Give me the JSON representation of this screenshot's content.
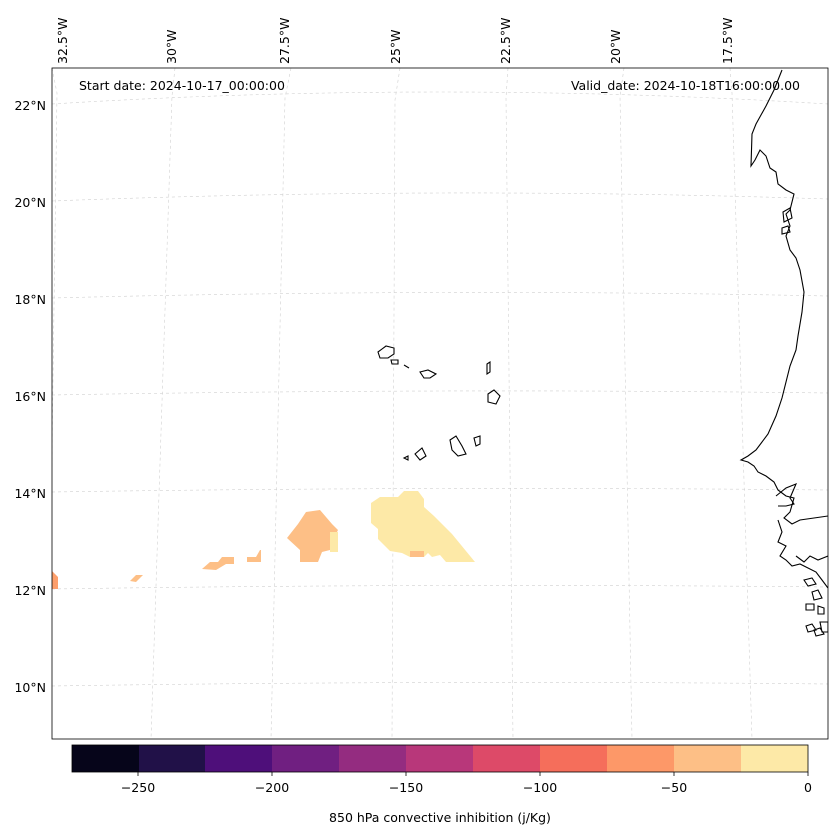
{
  "map": {
    "start_date": "Start date: 2024-10-17_00:00:00",
    "valid_date": "Valid_date: 2024-10-18T16:00:00.00",
    "lon_labels": [
      "32.5°W",
      "30°W",
      "27.5°W",
      "25°W",
      "22.5°W",
      "20°W",
      "17.5°W"
    ],
    "lat_labels": [
      "22°N",
      "20°N",
      "18°N",
      "16°N",
      "14°N",
      "12°N",
      "10°N"
    ],
    "field_colors": {
      "light": "#fde9a7",
      "orange": "#fdbf86",
      "dark_orange": "#fd9f6c"
    }
  },
  "colorbar": {
    "label": "850 hPa convective inhibition (j/Kg)",
    "ticks": [
      "−250",
      "−200",
      "−150",
      "−100",
      "−50",
      "0"
    ],
    "colors": [
      "#06051a",
      "#211148",
      "#4e0f7a",
      "#701f81",
      "#942c80",
      "#b8377a",
      "#dd4a68",
      "#f56e5b",
      "#fd9868",
      "#fdbf86",
      "#fde9a7"
    ]
  }
}
